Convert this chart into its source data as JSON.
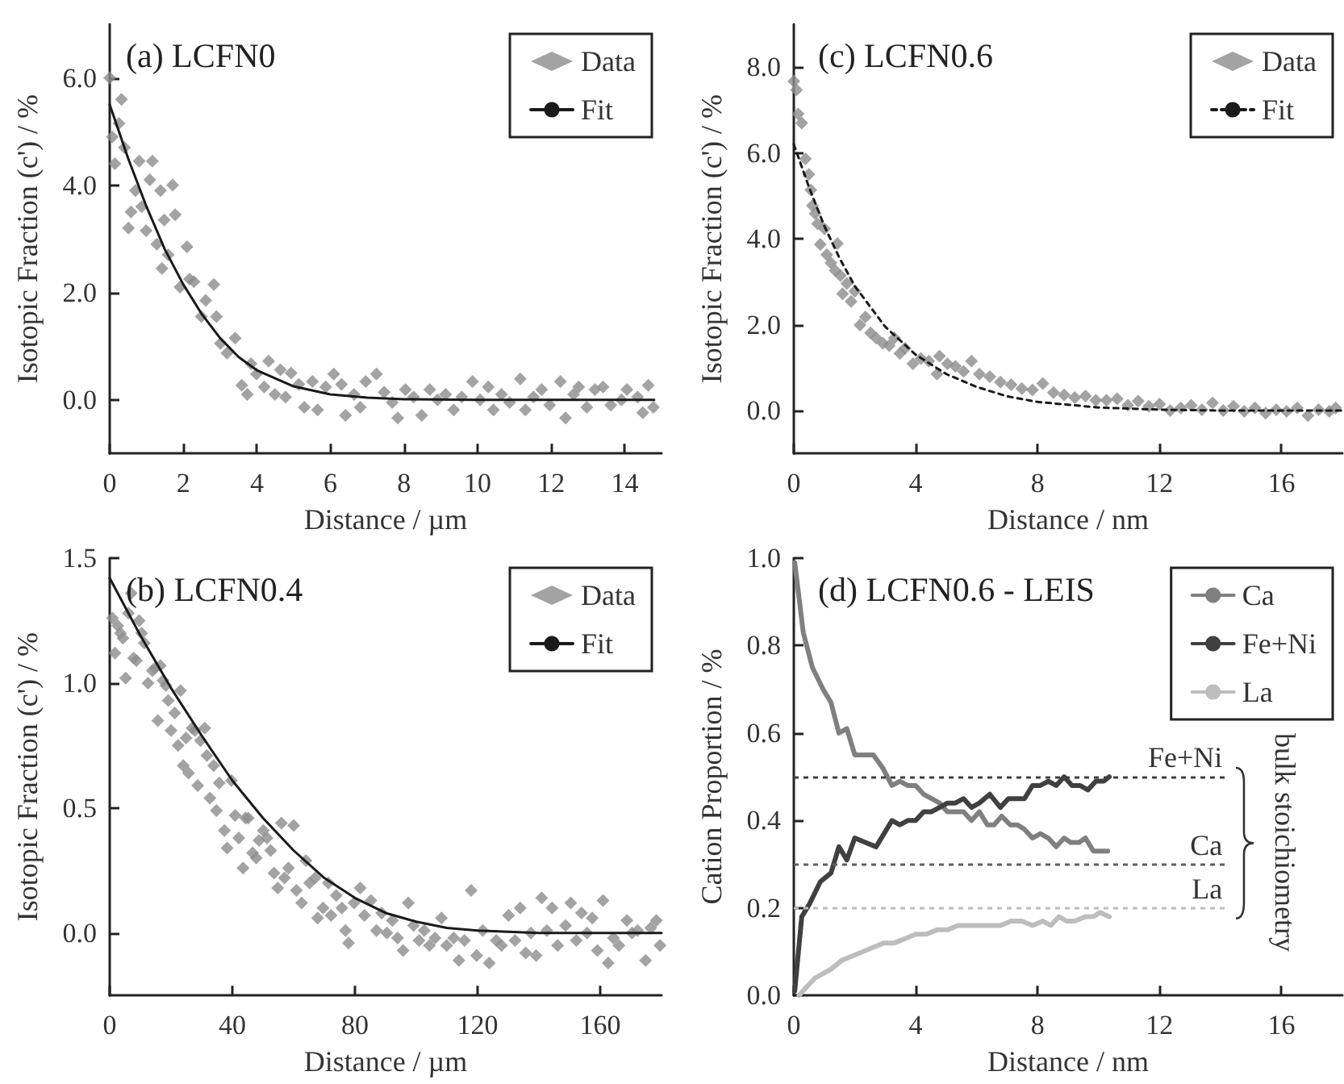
{
  "chart_data": [
    {
      "type": "scatter",
      "title": "(a) LCFN0",
      "xlabel": "Distance / µm",
      "ylabel": "Isotopic Fraction (c') / %",
      "xlim": [
        0,
        15
      ],
      "xticks": [
        0,
        2,
        4,
        6,
        8,
        10,
        12,
        14
      ],
      "ylim": [
        -1,
        7
      ],
      "yticks": [
        {
          "value": 0,
          "label": "0.0"
        },
        {
          "value": 2,
          "label": "2.0"
        },
        {
          "value": 4,
          "label": "4.0"
        },
        {
          "value": 6,
          "label": "6.0"
        }
      ],
      "grid": false,
      "legend": "top right",
      "series": [
        {
          "name": "Data",
          "type": "scatter",
          "marker": "diamond",
          "color": "#8c8c8c",
          "x": [
            0,
            0.07,
            0.14,
            0.25,
            0.32,
            0.4,
            0.51,
            0.58,
            0.7,
            0.8,
            0.87,
            0.99,
            1.09,
            1.16,
            1.28,
            1.38,
            1.42,
            1.48,
            1.59,
            1.71,
            1.78,
            1.91,
            2.1,
            2.17,
            2.29,
            2.49,
            2.61,
            2.83,
            2.9,
            3.01,
            3.19,
            3.41,
            3.59,
            3.74,
            3.84,
            3.99,
            4.2,
            4.32,
            4.49,
            4.64,
            4.78,
            4.93,
            5.14,
            5.29,
            5.51,
            5.65,
            5.87,
            6.09,
            6.3,
            6.41,
            6.64,
            6.81,
            6.96,
            7.25,
            7.46,
            7.68,
            7.83,
            8.04,
            8.26,
            8.48,
            8.7,
            8.91,
            9.13,
            9.35,
            9.57,
            9.86,
            10.07,
            10.29,
            10.43,
            10.65,
            10.87,
            11.16,
            11.3,
            11.52,
            11.74,
            11.96,
            12.25,
            12.39,
            12.61,
            12.75,
            12.97,
            13.19,
            13.41,
            13.62,
            13.91,
            14.06,
            14.35,
            14.49,
            14.64,
            14.78
          ],
          "values": [
            6.0,
            4.9,
            4.4,
            5.15,
            5.6,
            4.7,
            3.2,
            3.5,
            3.9,
            4.45,
            3.6,
            3.15,
            4.1,
            4.45,
            2.9,
            3.9,
            2.45,
            3.35,
            2.7,
            4.0,
            3.45,
            2.1,
            2.85,
            2.25,
            2.2,
            1.55,
            1.85,
            2.15,
            1.55,
            1.05,
            0.87,
            1.15,
            0.27,
            0.1,
            0.67,
            0.48,
            0.24,
            0.72,
            0.1,
            0.56,
            0.05,
            0.5,
            0.29,
            -0.14,
            0.34,
            -0.19,
            0.24,
            0.48,
            0.29,
            -0.29,
            0.1,
            -0.14,
            0.34,
            0.48,
            0.14,
            -0.05,
            -0.34,
            0.19,
            0.05,
            -0.29,
            0.19,
            0,
            0.1,
            -0.19,
            0.05,
            0.34,
            0,
            0.24,
            -0.19,
            0.1,
            -0.05,
            0.39,
            -0.19,
            0.05,
            0.19,
            -0.1,
            0.34,
            -0.34,
            0.1,
            0.24,
            -0.14,
            0.19,
            0.24,
            -0.1,
            0,
            0.19,
            0.05,
            -0.24,
            0.27,
            -0.14
          ]
        },
        {
          "name": "Fit",
          "type": "line",
          "marker": "none",
          "line_style": "solid",
          "color": "#1a1a1a",
          "x": [
            0,
            0.5,
            1,
            1.5,
            2,
            2.5,
            3,
            3.5,
            4,
            5,
            6,
            7,
            8,
            10,
            14.8
          ],
          "values": [
            5.5,
            4.5,
            3.6,
            2.8,
            2.15,
            1.6,
            1.15,
            0.8,
            0.55,
            0.25,
            0.1,
            0.04,
            0.01,
            0,
            0
          ]
        }
      ]
    },
    {
      "type": "scatter",
      "title": "(c) LCFN0.6",
      "xlabel": "Distance / nm",
      "ylabel": "Isotopic Fraction (c') / %",
      "xlim": [
        0,
        18
      ],
      "xticks": [
        0,
        4,
        8,
        12,
        16
      ],
      "ylim": [
        -1,
        9
      ],
      "yticks": [
        {
          "value": 0,
          "label": "0.0"
        },
        {
          "value": 2,
          "label": "2.0"
        },
        {
          "value": 4,
          "label": "4.0"
        },
        {
          "value": 6,
          "label": "6.0"
        },
        {
          "value": 8,
          "label": "8.0"
        }
      ],
      "grid": false,
      "legend": "top right",
      "series": [
        {
          "name": "Data",
          "type": "scatter",
          "marker": "diamond",
          "color": "#8c8c8c",
          "x": [
            0,
            0.09,
            0.14,
            0.26,
            0.38,
            0.49,
            0.56,
            0.61,
            0.7,
            0.78,
            0.87,
            1.01,
            1.08,
            1.22,
            1.36,
            1.43,
            1.53,
            1.6,
            1.74,
            1.88,
            2.0,
            2.17,
            2.35,
            2.52,
            2.7,
            2.92,
            3.13,
            3.3,
            3.48,
            3.65,
            3.91,
            4.17,
            4.43,
            4.7,
            4.78,
            5.04,
            5.3,
            5.57,
            5.83,
            6.09,
            6.43,
            6.78,
            7.13,
            7.48,
            7.83,
            8.17,
            8.52,
            8.87,
            9.22,
            9.57,
            9.91,
            10.26,
            10.61,
            10.96,
            11.3,
            11.65,
            12.0,
            12.35,
            12.7,
            13.04,
            13.39,
            13.74,
            14.09,
            14.43,
            14.78,
            15.13,
            15.48,
            15.83,
            16.17,
            16.52,
            16.87,
            17.22,
            17.57,
            17.78
          ],
          "values": [
            7.67,
            7.47,
            6.91,
            6.7,
            5.86,
            5.5,
            5.14,
            4.77,
            4.59,
            4.35,
            3.87,
            4.23,
            3.63,
            3.44,
            3.26,
            3.89,
            3.14,
            2.72,
            2.96,
            2.54,
            2.78,
            1.99,
            2.18,
            1.81,
            1.69,
            1.57,
            1.51,
            1.69,
            1.33,
            1.45,
            1.09,
            1.21,
            1.15,
            0.85,
            1.27,
            1.09,
            1.03,
            0.91,
            1.15,
            0.85,
            0.79,
            0.66,
            0.6,
            0.51,
            0.48,
            0.63,
            0.42,
            0.36,
            0.3,
            0.34,
            0.24,
            0.24,
            0.27,
            0.12,
            0.22,
            0.1,
            0.15,
            0,
            0.06,
            0.12,
            0.02,
            0.18,
            0,
            0.1,
            -0.02,
            0.06,
            -0.06,
            0.02,
            -0.02,
            0.06,
            -0.12,
            0.02,
            -0.02,
            0.06
          ]
        },
        {
          "name": "Fit",
          "type": "line",
          "marker": "none",
          "line_style": "dashed",
          "color": "#1a1a1a",
          "x": [
            0,
            0.5,
            1,
            1.5,
            2,
            3,
            4,
            5,
            6,
            7,
            8,
            10,
            12,
            14,
            18
          ],
          "values": [
            6.2,
            5.2,
            4.3,
            3.55,
            2.9,
            1.95,
            1.3,
            0.85,
            0.55,
            0.33,
            0.2,
            0.07,
            0.02,
            0,
            0
          ]
        }
      ]
    },
    {
      "type": "scatter",
      "title": "(b) LCFN0.4",
      "xlabel": "Distance / µm",
      "ylabel": "Isotopic Fraction (c') / %",
      "xlim": [
        0,
        180
      ],
      "xticks": [
        0,
        40,
        80,
        120,
        160
      ],
      "ylim": [
        -0.25,
        1.5
      ],
      "yticks": [
        {
          "value": 0,
          "label": "0.0"
        },
        {
          "value": 0.5,
          "label": "0.5"
        },
        {
          "value": 1,
          "label": "1.0"
        },
        {
          "value": 1.5,
          "label": "1.5"
        }
      ],
      "grid": false,
      "legend": "top right",
      "series": [
        {
          "name": "Data",
          "type": "scatter",
          "marker": "diamond",
          "color": "#8c8c8c",
          "x": [
            0.9,
            1.7,
            2.6,
            3.5,
            4.3,
            5.2,
            6.1,
            7,
            7.8,
            8.7,
            9.6,
            10.4,
            11.3,
            12.5,
            13.9,
            14.8,
            15.7,
            16.5,
            17.4,
            18.3,
            19.1,
            20,
            21.2,
            22.3,
            23.1,
            24,
            24.9,
            25.7,
            26.9,
            27.8,
            28.7,
            29.6,
            31,
            31.7,
            32.7,
            33.9,
            34.8,
            35.7,
            37.4,
            38.3,
            39.7,
            40.9,
            42.1,
            43.5,
            44.3,
            45.2,
            46.6,
            47.8,
            48.7,
            50.1,
            51.3,
            52.5,
            53.6,
            54.8,
            56,
            57,
            58.3,
            60,
            60.9,
            62.6,
            64,
            65.2,
            67,
            67.8,
            69.6,
            71.3,
            72.2,
            73.9,
            75.7,
            76.9,
            77.9,
            79.7,
            81.7,
            83.1,
            85.2,
            87,
            88.7,
            90.4,
            92.2,
            93.9,
            95.7,
            97.4,
            99.1,
            100.9,
            102.6,
            104.3,
            106.1,
            108.2,
            109.9,
            112.2,
            113.9,
            115.7,
            117.9,
            119.7,
            121.7,
            123.8,
            126.1,
            127.8,
            130.1,
            132.2,
            133.9,
            135.7,
            137.4,
            139.1,
            140.9,
            142.6,
            144.3,
            146.1,
            148.7,
            150.4,
            152.2,
            153.9,
            155.7,
            157.4,
            159.1,
            160.9,
            162.6,
            164.3,
            166.1,
            168.7,
            170.4,
            172.2,
            174.8,
            176.5,
            178.3,
            179.5
          ],
          "values": [
            1.26,
            1.12,
            1.23,
            1.2,
            1.18,
            1.02,
            1.28,
            1.36,
            1.1,
            1.09,
            1.25,
            1.2,
            1.16,
            1.0,
            1.05,
            1.06,
            0.85,
            1.07,
            1.01,
            0.99,
            0.93,
            0.81,
            0.88,
            0.75,
            0.97,
            0.67,
            0.78,
            0.64,
            0.82,
            0.81,
            0.59,
            0.77,
            0.82,
            0.71,
            0.54,
            0.67,
            0.49,
            0.6,
            0.41,
            0.34,
            0.61,
            0.47,
            0.38,
            0.26,
            0.46,
            0.46,
            0.32,
            0.3,
            0.37,
            0.41,
            0.38,
            0.33,
            0.24,
            0.18,
            0.44,
            0.22,
            0.26,
            0.43,
            0.17,
            0.12,
            0.29,
            0.2,
            0.22,
            0.06,
            0.1,
            0.2,
            0.07,
            0.15,
            0.1,
            0.01,
            -0.04,
            0.12,
            0.18,
            0.07,
            0.13,
            0.01,
            0.08,
            0,
            0.05,
            -0.02,
            -0.07,
            0.12,
            0.03,
            -0.03,
            0.01,
            -0.05,
            -0.02,
            0.06,
            -0.05,
            -0.02,
            -0.11,
            -0.03,
            0.17,
            -0.09,
            0.01,
            -0.12,
            -0.03,
            -0.05,
            0.07,
            -0.03,
            0.1,
            -0.08,
            0,
            -0.09,
            0.14,
            0.01,
            0.1,
            -0.05,
            0.03,
            0.12,
            -0.03,
            0.08,
            0,
            0.06,
            -0.07,
            0.13,
            -0.12,
            -0.02,
            -0.05,
            0.05,
            0,
            0.01,
            -0.11,
            0.02,
            0.05,
            -0.05
          ]
        },
        {
          "name": "Fit",
          "type": "line",
          "marker": "none",
          "line_style": "solid",
          "color": "#1a1a1a",
          "x": [
            0,
            10,
            20,
            30,
            40,
            50,
            60,
            70,
            80,
            90,
            100,
            110,
            120,
            140,
            180
          ],
          "values": [
            1.42,
            1.19,
            0.98,
            0.79,
            0.61,
            0.46,
            0.33,
            0.22,
            0.14,
            0.08,
            0.045,
            0.02,
            0.01,
            0,
            0
          ]
        }
      ]
    },
    {
      "type": "line",
      "title": "(d) LCFN0.6 - LEIS",
      "xlabel": "Distance / nm",
      "ylabel": "Cation Proportion / %",
      "xlim": [
        0,
        18
      ],
      "xticks": [
        0,
        4,
        8,
        12,
        16
      ],
      "ylim": [
        0,
        1
      ],
      "yticks": [
        {
          "value": 0,
          "label": "0.0"
        },
        {
          "value": 0.2,
          "label": "0.2"
        },
        {
          "value": 0.4,
          "label": "0.4"
        },
        {
          "value": 0.6,
          "label": "0.6"
        },
        {
          "value": 0.8,
          "label": "0.8"
        },
        {
          "value": 1,
          "label": "1.0"
        }
      ],
      "grid": false,
      "legend": "top right",
      "marker": "none",
      "series": [
        {
          "name": "Ca",
          "color": "#808080",
          "x": [
            0.03,
            0.31,
            0.61,
            0.96,
            1.22,
            1.48,
            1.74,
            2.0,
            2.26,
            2.61,
            2.92,
            3.22,
            3.48,
            3.74,
            4.0,
            4.26,
            4.52,
            4.78,
            5.04,
            5.3,
            5.57,
            5.83,
            6.09,
            6.35,
            6.57,
            6.82,
            7.1,
            7.34,
            7.57,
            7.83,
            8.09,
            8.35,
            8.61,
            8.87,
            9.08,
            9.36,
            9.57,
            9.83,
            10.05,
            10.3
          ],
          "values": [
            0.99,
            0.83,
            0.75,
            0.7,
            0.67,
            0.6,
            0.61,
            0.55,
            0.55,
            0.55,
            0.52,
            0.48,
            0.49,
            0.48,
            0.48,
            0.46,
            0.45,
            0.44,
            0.42,
            0.42,
            0.42,
            0.4,
            0.42,
            0.39,
            0.39,
            0.41,
            0.39,
            0.39,
            0.38,
            0.36,
            0.37,
            0.36,
            0.34,
            0.36,
            0.35,
            0.35,
            0.36,
            0.33,
            0.33,
            0.33
          ]
        },
        {
          "name": "Fe+Ni",
          "color": "#404040",
          "x": [
            0.03,
            0.26,
            0.52,
            0.87,
            1.22,
            1.48,
            1.74,
            2.0,
            2.35,
            2.7,
            2.96,
            3.22,
            3.48,
            3.74,
            4.0,
            4.26,
            4.52,
            4.78,
            5.04,
            5.3,
            5.57,
            5.83,
            6.09,
            6.43,
            6.78,
            7.04,
            7.3,
            7.57,
            7.83,
            8.09,
            8.35,
            8.61,
            8.87,
            9.13,
            9.39,
            9.65,
            9.91,
            10.17,
            10.35
          ],
          "values": [
            0.01,
            0.18,
            0.21,
            0.26,
            0.28,
            0.34,
            0.31,
            0.36,
            0.35,
            0.34,
            0.37,
            0.4,
            0.39,
            0.4,
            0.4,
            0.42,
            0.42,
            0.43,
            0.44,
            0.44,
            0.45,
            0.43,
            0.44,
            0.46,
            0.43,
            0.45,
            0.45,
            0.45,
            0.48,
            0.48,
            0.49,
            0.48,
            0.5,
            0.48,
            0.48,
            0.47,
            0.49,
            0.49,
            0.5
          ]
        },
        {
          "name": "La",
          "color": "#bdbdbd",
          "x": [
            0.17,
            0.43,
            0.7,
            0.96,
            1.22,
            1.57,
            1.91,
            2.26,
            2.61,
            2.96,
            3.3,
            3.65,
            4.0,
            4.35,
            4.7,
            5.04,
            5.39,
            5.74,
            6.09,
            6.43,
            6.78,
            7.13,
            7.48,
            7.83,
            8.17,
            8.43,
            8.7,
            8.96,
            9.22,
            9.57,
            9.83,
            10.05,
            10.35
          ],
          "values": [
            0,
            0.02,
            0.04,
            0.05,
            0.06,
            0.08,
            0.09,
            0.1,
            0.11,
            0.12,
            0.12,
            0.13,
            0.14,
            0.14,
            0.15,
            0.15,
            0.16,
            0.16,
            0.16,
            0.16,
            0.16,
            0.17,
            0.17,
            0.16,
            0.17,
            0.16,
            0.18,
            0.17,
            0.17,
            0.18,
            0.18,
            0.19,
            0.18
          ]
        }
      ],
      "ref_lines": [
        {
          "axis": "y",
          "value": 0.5,
          "label": "Fe+Ni",
          "color": "#404040",
          "line_style": "dashed"
        },
        {
          "axis": "y",
          "value": 0.3,
          "label": "Ca",
          "color": "#606060",
          "line_style": "dashed"
        },
        {
          "axis": "y",
          "value": 0.2,
          "label": "La",
          "color": "#bdbdbd",
          "line_style": "dashed"
        }
      ],
      "annotations": [
        "bulk stoichiometry"
      ]
    }
  ]
}
